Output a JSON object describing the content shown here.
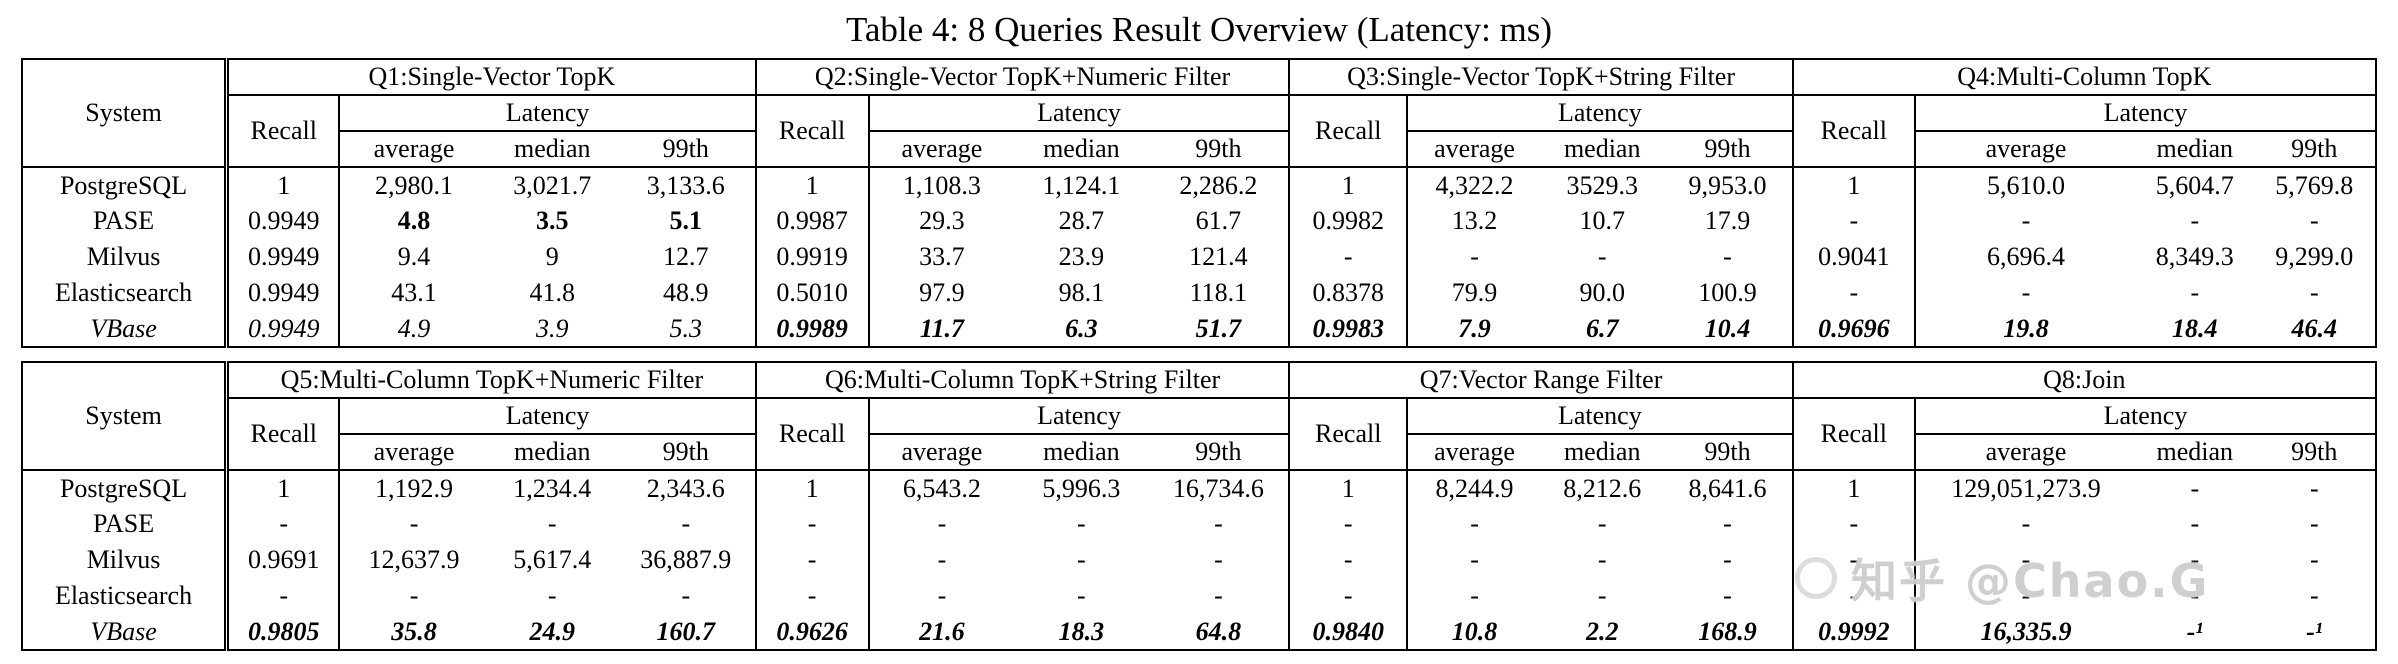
{
  "title": "Table 4: 8 Queries Result Overview (Latency: ms)",
  "watermark": {
    "text": "知乎 @Chao.G"
  },
  "header_labels": {
    "system": "System",
    "recall": "Recall",
    "latency": "Latency",
    "subcols": [
      "average",
      "median",
      "99th"
    ]
  },
  "tables": [
    {
      "queries": [
        "Q1:Single-Vector TopK",
        "Q2:Single-Vector TopK+Numeric Filter",
        "Q3:Single-Vector TopK+String Filter",
        "Q4:Multi-Column TopK"
      ],
      "rows": [
        {
          "system": "PostgreSQL",
          "system_style": "n",
          "cells": [
            "1",
            "2,980.1",
            "3,021.7",
            "3,133.6",
            "1",
            "1,108.3",
            "1,124.1",
            "2,286.2",
            "1",
            "4,322.2",
            "3529.3",
            "9,953.0",
            "1",
            "5,610.0",
            "5,604.7",
            "5,769.8"
          ],
          "styles": [
            "n",
            "n",
            "n",
            "n",
            "n",
            "n",
            "n",
            "n",
            "n",
            "n",
            "n",
            "n",
            "n",
            "n",
            "n",
            "n"
          ]
        },
        {
          "system": "PASE",
          "system_style": "n",
          "cells": [
            "0.9949",
            "4.8",
            "3.5",
            "5.1",
            "0.9987",
            "29.3",
            "28.7",
            "61.7",
            "0.9982",
            "13.2",
            "10.7",
            "17.9",
            "-",
            "-",
            "-",
            "-"
          ],
          "styles": [
            "n",
            "b",
            "b",
            "b",
            "n",
            "n",
            "n",
            "n",
            "n",
            "n",
            "n",
            "n",
            "n",
            "n",
            "n",
            "n"
          ]
        },
        {
          "system": "Milvus",
          "system_style": "n",
          "cells": [
            "0.9949",
            "9.4",
            "9",
            "12.7",
            "0.9919",
            "33.7",
            "23.9",
            "121.4",
            "-",
            "-",
            "-",
            "-",
            "0.9041",
            "6,696.4",
            "8,349.3",
            "9,299.0"
          ],
          "styles": [
            "n",
            "n",
            "n",
            "n",
            "n",
            "n",
            "n",
            "n",
            "n",
            "n",
            "n",
            "n",
            "n",
            "n",
            "n",
            "n"
          ]
        },
        {
          "system": "Elasticsearch",
          "system_style": "n",
          "cells": [
            "0.9949",
            "43.1",
            "41.8",
            "48.9",
            "0.5010",
            "97.9",
            "98.1",
            "118.1",
            "0.8378",
            "79.9",
            "90.0",
            "100.9",
            "-",
            "-",
            "-",
            "-"
          ],
          "styles": [
            "n",
            "n",
            "n",
            "n",
            "n",
            "n",
            "n",
            "n",
            "n",
            "n",
            "n",
            "n",
            "n",
            "n",
            "n",
            "n"
          ]
        },
        {
          "system": "VBase",
          "system_style": "i",
          "cells": [
            "0.9949",
            "4.9",
            "3.9",
            "5.3",
            "0.9989",
            "11.7",
            "6.3",
            "51.7",
            "0.9983",
            "7.9",
            "6.7",
            "10.4",
            "0.9696",
            "19.8",
            "18.4",
            "46.4"
          ],
          "styles": [
            "i",
            "i",
            "i",
            "i",
            "bi",
            "bi",
            "bi",
            "bi",
            "bi",
            "bi",
            "bi",
            "bi",
            "bi",
            "bi",
            "bi",
            "bi"
          ]
        }
      ]
    },
    {
      "queries": [
        "Q5:Multi-Column TopK+Numeric Filter",
        "Q6:Multi-Column TopK+String Filter",
        "Q7:Vector Range Filter",
        "Q8:Join"
      ],
      "rows": [
        {
          "system": "PostgreSQL",
          "system_style": "n",
          "cells": [
            "1",
            "1,192.9",
            "1,234.4",
            "2,343.6",
            "1",
            "6,543.2",
            "5,996.3",
            "16,734.6",
            "1",
            "8,244.9",
            "8,212.6",
            "8,641.6",
            "1",
            "129,051,273.9",
            "-",
            "-"
          ],
          "styles": [
            "n",
            "n",
            "n",
            "n",
            "n",
            "n",
            "n",
            "n",
            "n",
            "n",
            "n",
            "n",
            "n",
            "n",
            "n",
            "n"
          ]
        },
        {
          "system": "PASE",
          "system_style": "n",
          "cells": [
            "-",
            "-",
            "-",
            "-",
            "-",
            "-",
            "-",
            "-",
            "-",
            "-",
            "-",
            "-",
            "-",
            "-",
            "-",
            "-"
          ],
          "styles": [
            "n",
            "n",
            "n",
            "n",
            "n",
            "n",
            "n",
            "n",
            "n",
            "n",
            "n",
            "n",
            "n",
            "n",
            "n",
            "n"
          ]
        },
        {
          "system": "Milvus",
          "system_style": "n",
          "cells": [
            "0.9691",
            "12,637.9",
            "5,617.4",
            "36,887.9",
            "-",
            "-",
            "-",
            "-",
            "-",
            "-",
            "-",
            "-",
            "-",
            "-",
            "-",
            "-"
          ],
          "styles": [
            "n",
            "n",
            "n",
            "n",
            "n",
            "n",
            "n",
            "n",
            "n",
            "n",
            "n",
            "n",
            "n",
            "n",
            "n",
            "n"
          ]
        },
        {
          "system": "Elasticsearch",
          "system_style": "n",
          "cells": [
            "-",
            "-",
            "-",
            "-",
            "-",
            "-",
            "-",
            "-",
            "-",
            "-",
            "-",
            "-",
            "-",
            "-",
            "-",
            "-"
          ],
          "styles": [
            "n",
            "n",
            "n",
            "n",
            "n",
            "n",
            "n",
            "n",
            "n",
            "n",
            "n",
            "n",
            "n",
            "n",
            "n",
            "n"
          ]
        },
        {
          "system": "VBase",
          "system_style": "i",
          "cells": [
            "0.9805",
            "35.8",
            "24.9",
            "160.7",
            "0.9626",
            "21.6",
            "18.3",
            "64.8",
            "0.9840",
            "10.8",
            "2.2",
            "168.9",
            "0.9992",
            "16,335.9",
            "-¹",
            "-¹"
          ],
          "styles": [
            "bi",
            "bi",
            "bi",
            "bi",
            "bi",
            "bi",
            "bi",
            "bi",
            "bi",
            "bi",
            "bi",
            "bi",
            "bi",
            "bi",
            "bi",
            "bi"
          ]
        }
      ]
    }
  ]
}
